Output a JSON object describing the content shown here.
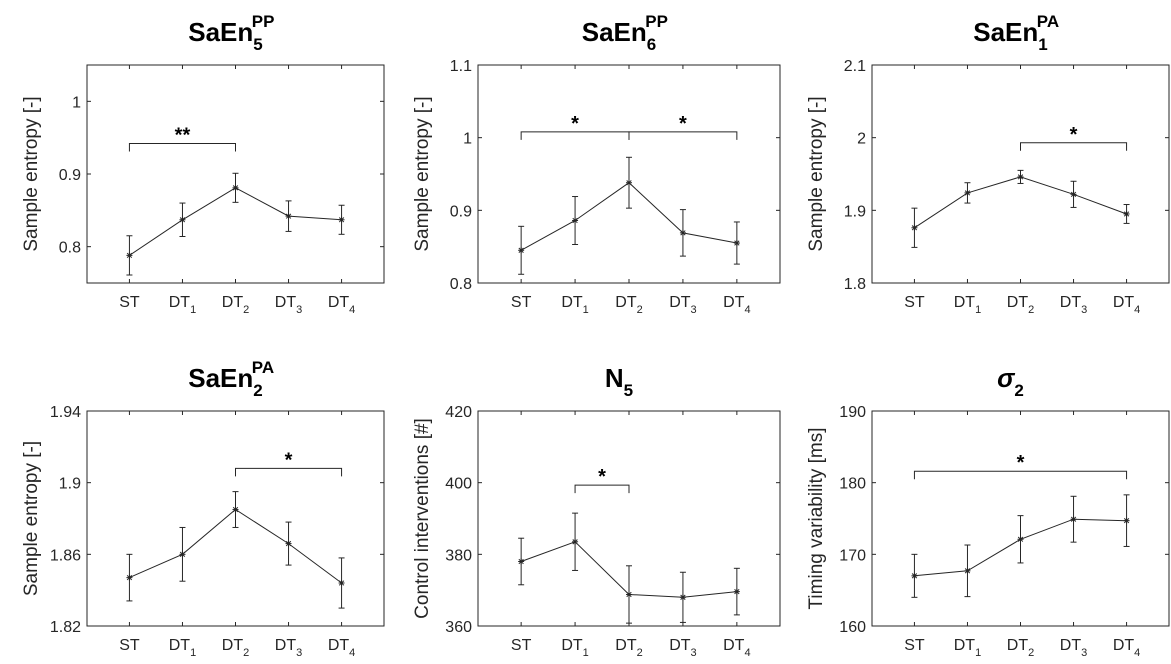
{
  "chart_data": [
    {
      "type": "line",
      "title": {
        "base": "SaEn",
        "sub": "5",
        "sup": "PP"
      },
      "ylabel": "Sample entropy [-]",
      "ylim": [
        0.75,
        1.05
      ],
      "yticks": [
        0.8,
        0.9,
        1
      ],
      "ytick_labels": [
        "0.8",
        "0.9",
        "1"
      ],
      "categories": [
        {
          "base": "ST",
          "sub": ""
        },
        {
          "base": "DT",
          "sub": "1"
        },
        {
          "base": "DT",
          "sub": "2"
        },
        {
          "base": "DT",
          "sub": "3"
        },
        {
          "base": "DT",
          "sub": "4"
        }
      ],
      "values": [
        0.788,
        0.837,
        0.881,
        0.842,
        0.837
      ],
      "errors": [
        0.027,
        0.023,
        0.02,
        0.021,
        0.02
      ],
      "significance": [
        {
          "from": 0,
          "to": 2,
          "label": "**",
          "y": 0.942
        }
      ]
    },
    {
      "type": "line",
      "title": {
        "base": "SaEn",
        "sub": "6",
        "sup": "PP"
      },
      "ylabel": "Sample entropy [-]",
      "ylim": [
        0.8,
        1.1
      ],
      "yticks": [
        0.8,
        0.9,
        1,
        1.1
      ],
      "ytick_labels": [
        "0.8",
        "0.9",
        "1",
        "1.1"
      ],
      "categories": [
        {
          "base": "ST",
          "sub": ""
        },
        {
          "base": "DT",
          "sub": "1"
        },
        {
          "base": "DT",
          "sub": "2"
        },
        {
          "base": "DT",
          "sub": "3"
        },
        {
          "base": "DT",
          "sub": "4"
        }
      ],
      "values": [
        0.845,
        0.886,
        0.938,
        0.869,
        0.855
      ],
      "errors": [
        0.033,
        0.033,
        0.035,
        0.032,
        0.029
      ],
      "significance": [
        {
          "from": 0,
          "to": 2,
          "label": "*",
          "y": 1.008
        },
        {
          "from": 2,
          "to": 4,
          "label": "*",
          "y": 1.008
        }
      ]
    },
    {
      "type": "line",
      "title": {
        "base": "SaEn",
        "sub": "1",
        "sup": "PA"
      },
      "ylabel": "Sample entropy [-]",
      "ylim": [
        1.8,
        2.1
      ],
      "yticks": [
        1.8,
        1.9,
        2,
        2.1
      ],
      "ytick_labels": [
        "1.8",
        "1.9",
        "2",
        "2.1"
      ],
      "categories": [
        {
          "base": "ST",
          "sub": ""
        },
        {
          "base": "DT",
          "sub": "1"
        },
        {
          "base": "DT",
          "sub": "2"
        },
        {
          "base": "DT",
          "sub": "3"
        },
        {
          "base": "DT",
          "sub": "4"
        }
      ],
      "values": [
        1.876,
        1.924,
        1.946,
        1.922,
        1.895
      ],
      "errors": [
        0.027,
        0.014,
        0.009,
        0.018,
        0.013
      ],
      "significance": [
        {
          "from": 2,
          "to": 4,
          "label": "*",
          "y": 1.993
        }
      ]
    },
    {
      "type": "line",
      "title": {
        "base": "SaEn",
        "sub": "2",
        "sup": "PA"
      },
      "ylabel": "Sample entropy [-]",
      "ylim": [
        1.82,
        1.94
      ],
      "yticks": [
        1.82,
        1.86,
        1.9,
        1.94
      ],
      "ytick_labels": [
        "1.82",
        "1.86",
        "1.9",
        "1.94"
      ],
      "categories": [
        {
          "base": "ST",
          "sub": ""
        },
        {
          "base": "DT",
          "sub": "1"
        },
        {
          "base": "DT",
          "sub": "2"
        },
        {
          "base": "DT",
          "sub": "3"
        },
        {
          "base": "DT",
          "sub": "4"
        }
      ],
      "values": [
        1.847,
        1.86,
        1.885,
        1.866,
        1.844
      ],
      "errors": [
        0.013,
        0.015,
        0.01,
        0.012,
        0.014
      ],
      "significance": [
        {
          "from": 2,
          "to": 4,
          "label": "*",
          "y": 1.908
        }
      ]
    },
    {
      "type": "line",
      "title": {
        "base": "N",
        "sub": "5",
        "sup": ""
      },
      "ylabel": "Control interventions [#]",
      "ylim": [
        360,
        420
      ],
      "yticks": [
        360,
        380,
        400,
        420
      ],
      "ytick_labels": [
        "360",
        "380",
        "400",
        "420"
      ],
      "categories": [
        {
          "base": "ST",
          "sub": ""
        },
        {
          "base": "DT",
          "sub": "1"
        },
        {
          "base": "DT",
          "sub": "2"
        },
        {
          "base": "DT",
          "sub": "3"
        },
        {
          "base": "DT",
          "sub": "4"
        }
      ],
      "values": [
        378.0,
        383.5,
        368.8,
        368.0,
        369.6
      ],
      "errors": [
        6.5,
        8.0,
        8.0,
        7.0,
        6.5
      ],
      "significance": [
        {
          "from": 1,
          "to": 2,
          "label": "*",
          "y": 399.3
        }
      ]
    },
    {
      "type": "line",
      "title": {
        "base": "σ",
        "sub": "2",
        "sup": "",
        "italic": true
      },
      "ylabel": "Timing variability [ms]",
      "ylim": [
        160,
        190
      ],
      "yticks": [
        160,
        170,
        180,
        190
      ],
      "ytick_labels": [
        "160",
        "170",
        "180",
        "190"
      ],
      "categories": [
        {
          "base": "ST",
          "sub": ""
        },
        {
          "base": "DT",
          "sub": "1"
        },
        {
          "base": "DT",
          "sub": "2"
        },
        {
          "base": "DT",
          "sub": "3"
        },
        {
          "base": "DT",
          "sub": "4"
        }
      ],
      "values": [
        167.0,
        167.7,
        172.1,
        174.9,
        174.7
      ],
      "errors": [
        3.0,
        3.6,
        3.3,
        3.2,
        3.6
      ],
      "significance": [
        {
          "from": 0,
          "to": 4,
          "label": "*",
          "y": 181.6
        }
      ]
    }
  ]
}
